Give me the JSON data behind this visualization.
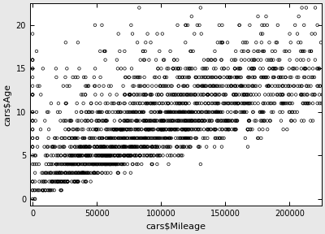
{
  "title": "",
  "xlabel": "cars$Mileage",
  "ylabel": "cars$Age",
  "xlim": [
    -2000,
    225000
  ],
  "ylim": [
    -0.8,
    22.5
  ],
  "xticks": [
    0,
    50000,
    100000,
    150000,
    200000
  ],
  "yticks": [
    0,
    5,
    10,
    15,
    20
  ],
  "xtick_labels": [
    "0",
    "50000",
    "100000",
    "150000",
    "200000"
  ],
  "ytick_labels": [
    "0",
    "5",
    "10",
    "15",
    "20"
  ],
  "marker": "o",
  "marker_size": 2.5,
  "marker_color": "none",
  "marker_edge_color": "black",
  "marker_edge_width": 0.5,
  "background_color": "#e8e8e8",
  "plot_bg_color": "white",
  "seed": 42,
  "age_counts": {
    "0": 3,
    "1": 25,
    "2": 55,
    "3": 90,
    "4": 130,
    "5": 160,
    "6": 175,
    "7": 185,
    "8": 190,
    "9": 185,
    "10": 175,
    "11": 160,
    "12": 150,
    "13": 140,
    "14": 130,
    "15": 110,
    "16": 75,
    "17": 55,
    "18": 40,
    "19": 30,
    "20": 45,
    "21": 18,
    "22": 8
  }
}
